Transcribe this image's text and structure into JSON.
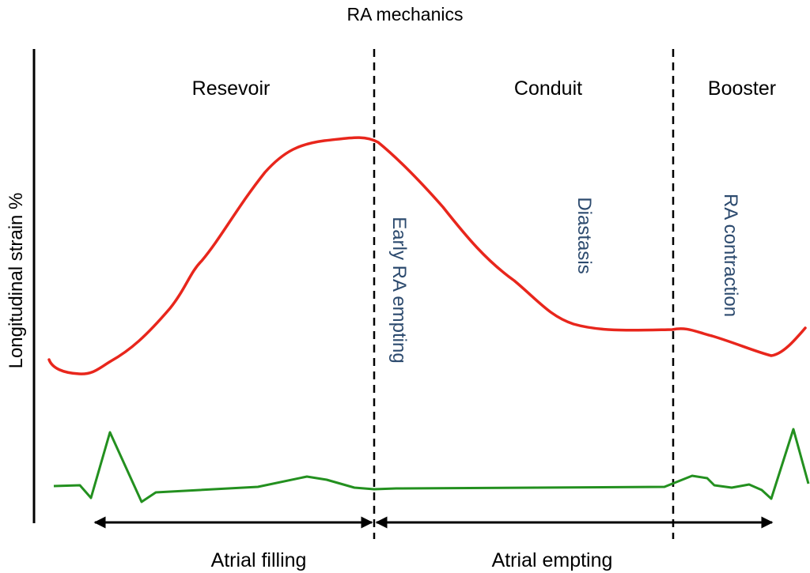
{
  "title": "RA mechanics",
  "y_axis_label": "Longitudinal strain %",
  "phases": [
    "Resevoir",
    "Conduit",
    "Booster"
  ],
  "annotations": [
    "Early RA empting",
    "Diastasis",
    "RA contraction"
  ],
  "bottom_labels": [
    "Atrial filling",
    "Atrial empting"
  ],
  "colors": {
    "strain_curve": "#e8261c",
    "ecg_trace": "#23901f",
    "annotation_text": "#2c4a6e",
    "lines": "#000000"
  }
}
